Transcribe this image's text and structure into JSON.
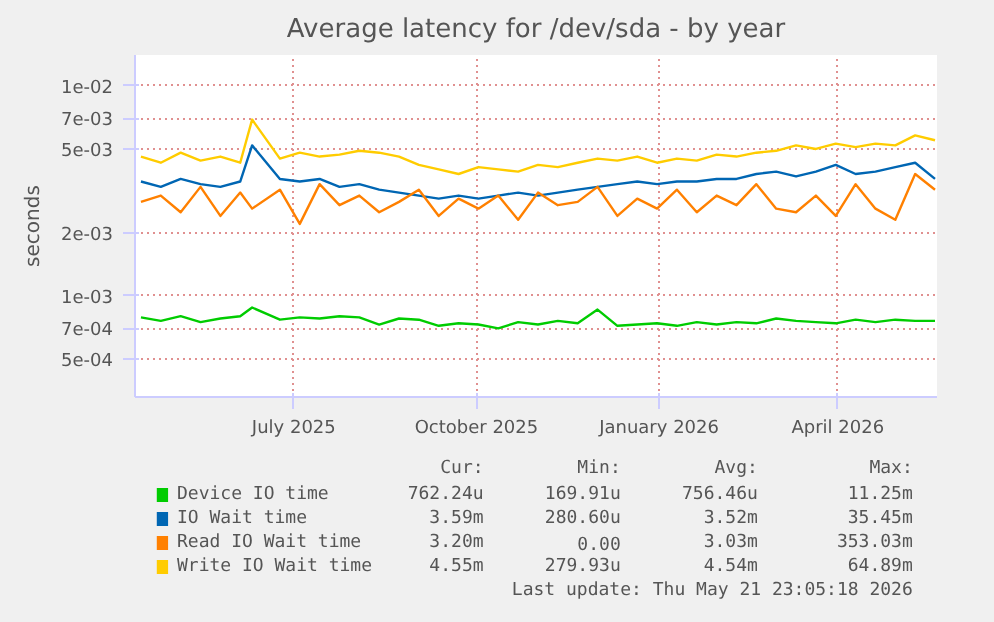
{
  "chart_data": {
    "type": "line",
    "title": "Average latency for /dev/sda - by year",
    "ylabel": "seconds",
    "log": true,
    "grid": true,
    "legend": "bottom",
    "xlim": [
      "2025-04-12",
      "2026-05-21"
    ],
    "xticks": [
      {
        "value": "2025-07-01",
        "label": "July 2025"
      },
      {
        "value": "2025-10-01",
        "label": "October 2025"
      },
      {
        "value": "2026-01-01",
        "label": "January 2026"
      },
      {
        "value": "2026-04-01",
        "label": "April 2026"
      }
    ],
    "ylim": [
      0.00033,
      0.014
    ],
    "yticks": [
      {
        "value": 0.0005,
        "label": "5e-04"
      },
      {
        "value": 0.0007,
        "label": "7e-04"
      },
      {
        "value": 0.001,
        "label": "1e-03"
      },
      {
        "value": 0.002,
        "label": "2e-03"
      },
      {
        "value": 0.005,
        "label": "5e-03"
      },
      {
        "value": 0.007,
        "label": "7e-03"
      },
      {
        "value": 0.01,
        "label": "1e-02"
      }
    ],
    "x": [
      "2025-04-15",
      "2025-04-25",
      "2025-05-05",
      "2025-05-15",
      "2025-05-25",
      "2025-06-04",
      "2025-06-10",
      "2025-06-24",
      "2025-07-04",
      "2025-07-14",
      "2025-07-24",
      "2025-08-03",
      "2025-08-13",
      "2025-08-23",
      "2025-09-02",
      "2025-09-12",
      "2025-09-22",
      "2025-10-02",
      "2025-10-12",
      "2025-10-22",
      "2025-11-01",
      "2025-11-11",
      "2025-11-21",
      "2025-12-01",
      "2025-12-11",
      "2025-12-21",
      "2025-12-31",
      "2026-01-10",
      "2026-01-20",
      "2026-01-30",
      "2026-02-09",
      "2026-02-19",
      "2026-03-01",
      "2026-03-11",
      "2026-03-21",
      "2026-03-31",
      "2026-04-10",
      "2026-04-20",
      "2026-04-30",
      "2026-05-10",
      "2026-05-20"
    ],
    "series": [
      {
        "name": "Device IO time",
        "color": "#00cc00",
        "values": [
          0.00079,
          0.00076,
          0.0008,
          0.00075,
          0.00078,
          0.0008,
          0.00088,
          0.00077,
          0.00079,
          0.00078,
          0.0008,
          0.00079,
          0.00073,
          0.00078,
          0.00077,
          0.00072,
          0.00074,
          0.00073,
          0.0007,
          0.00075,
          0.00073,
          0.00076,
          0.00074,
          0.00086,
          0.00072,
          0.00073,
          0.00074,
          0.00072,
          0.00075,
          0.00073,
          0.00075,
          0.00074,
          0.00078,
          0.00076,
          0.00075,
          0.00074,
          0.00077,
          0.00075,
          0.00077,
          0.00076,
          0.00076
        ]
      },
      {
        "name": "IO Wait time",
        "color": "#0066b3",
        "values": [
          0.0035,
          0.0033,
          0.0036,
          0.0034,
          0.0033,
          0.0035,
          0.0052,
          0.0036,
          0.0035,
          0.0036,
          0.0033,
          0.0034,
          0.0032,
          0.0031,
          0.003,
          0.0029,
          0.003,
          0.0029,
          0.003,
          0.0031,
          0.003,
          0.0031,
          0.0032,
          0.0033,
          0.0034,
          0.0035,
          0.0034,
          0.0035,
          0.0035,
          0.0036,
          0.0036,
          0.0038,
          0.0039,
          0.0037,
          0.0039,
          0.0042,
          0.0038,
          0.0039,
          0.0041,
          0.0043,
          0.0036
        ]
      },
      {
        "name": "Read IO Wait time",
        "color": "#ff8000",
        "values": [
          0.0028,
          0.003,
          0.0025,
          0.0033,
          0.0024,
          0.0031,
          0.0026,
          0.0032,
          0.0022,
          0.0034,
          0.0027,
          0.003,
          0.0025,
          0.0028,
          0.0032,
          0.0024,
          0.0029,
          0.0026,
          0.003,
          0.0023,
          0.0031,
          0.0027,
          0.0028,
          0.0033,
          0.0024,
          0.0029,
          0.0026,
          0.0032,
          0.0025,
          0.003,
          0.0027,
          0.0034,
          0.0026,
          0.0025,
          0.003,
          0.0024,
          0.0034,
          0.0026,
          0.0023,
          0.0038,
          0.0032
        ]
      },
      {
        "name": "Write IO Wait time",
        "color": "#ffcc00",
        "values": [
          0.0046,
          0.0043,
          0.0048,
          0.0044,
          0.0046,
          0.0043,
          0.0069,
          0.0045,
          0.0048,
          0.0046,
          0.0047,
          0.0049,
          0.0048,
          0.0046,
          0.0042,
          0.004,
          0.0038,
          0.0041,
          0.004,
          0.0039,
          0.0042,
          0.0041,
          0.0043,
          0.0045,
          0.0044,
          0.0046,
          0.0043,
          0.0045,
          0.0044,
          0.0047,
          0.0046,
          0.0048,
          0.0049,
          0.0052,
          0.005,
          0.0053,
          0.0051,
          0.0053,
          0.0052,
          0.0058,
          0.0055
        ]
      }
    ],
    "annotations": [
      "Cur:",
      "Min:",
      "Avg:",
      "Max:",
      "762.24u",
      "169.91u",
      "756.46u",
      "11.25m",
      "3.59m",
      "280.60u",
      "3.52m",
      "35.45m",
      "3.20m",
      "0.00",
      "3.03m",
      "353.03m",
      "4.55m",
      "279.93u",
      "4.54m",
      "64.89m",
      "Last update: Thu May 21 23:05:18 2026"
    ]
  }
}
